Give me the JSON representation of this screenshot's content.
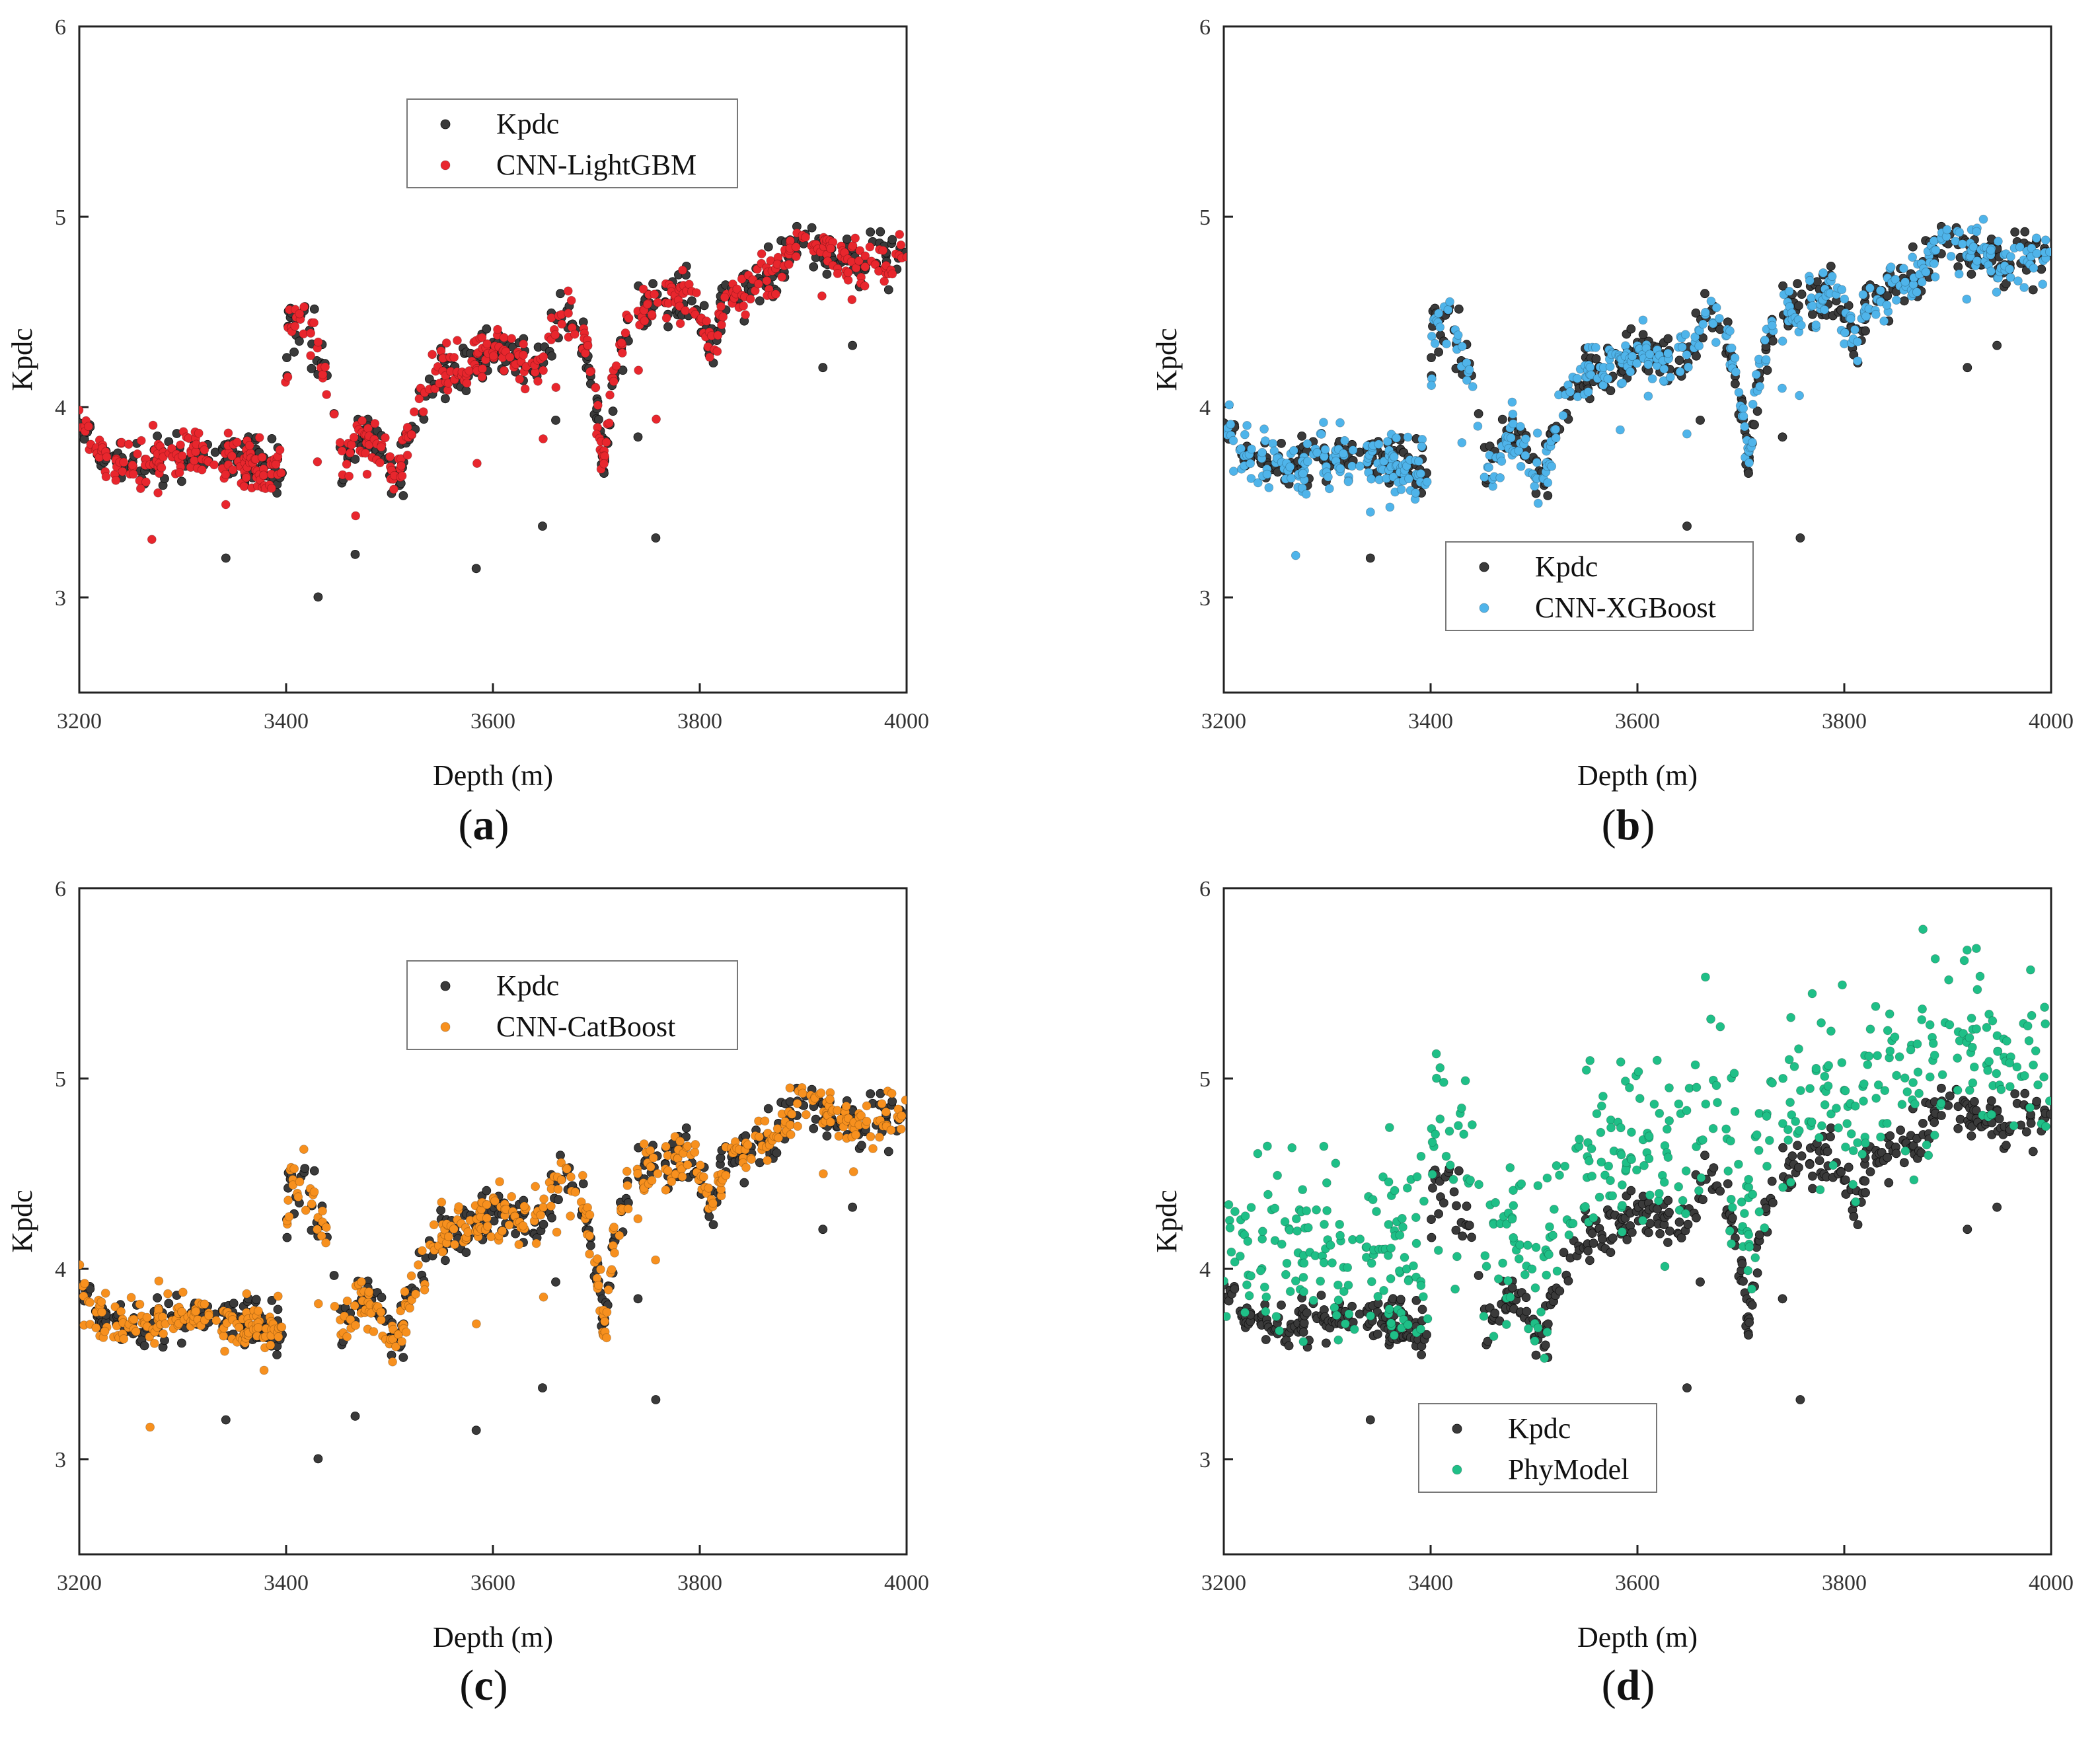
{
  "chart_data": [
    {
      "type": "scatter",
      "panel_label": "a",
      "title": "",
      "xlabel": "Depth (m)",
      "ylabel": "Kpdc",
      "xlim": [
        3200,
        4000
      ],
      "ylim": [
        2.5,
        6
      ],
      "xticks": [
        3200,
        3400,
        3600,
        3800,
        4000
      ],
      "yticks": [
        3,
        4,
        5,
        6
      ],
      "legend_position": "top-center",
      "series": [
        {
          "name": "Kpdc",
          "color": "#3a3a3a",
          "model": "measured"
        },
        {
          "name": "CNN-LightGBM",
          "color": "#e8262d",
          "model": "close",
          "noise": 0.06,
          "bias": 0.0
        }
      ]
    },
    {
      "type": "scatter",
      "panel_label": "b",
      "title": "",
      "xlabel": "Depth (m)",
      "ylabel": "Kpdc",
      "xlim": [
        3200,
        4000
      ],
      "ylim": [
        2.5,
        6
      ],
      "xticks": [
        3200,
        3400,
        3600,
        3800,
        4000
      ],
      "yticks": [
        3,
        4,
        5,
        6
      ],
      "legend_position": "bottom-center",
      "series": [
        {
          "name": "Kpdc",
          "color": "#3a3a3a",
          "model": "measured"
        },
        {
          "name": "CNN-XGBoost",
          "color": "#4fb4ea",
          "model": "close",
          "noise": 0.07,
          "bias": 0.0
        }
      ]
    },
    {
      "type": "scatter",
      "panel_label": "c",
      "title": "",
      "xlabel": "Depth (m)",
      "ylabel": "Kpdc",
      "xlim": [
        3200,
        4000
      ],
      "ylim": [
        2.5,
        6
      ],
      "xticks": [
        3200,
        3400,
        3600,
        3800,
        4000
      ],
      "yticks": [
        3,
        4,
        5,
        6
      ],
      "legend_position": "top-center",
      "series": [
        {
          "name": "Kpdc",
          "color": "#3a3a3a",
          "model": "measured"
        },
        {
          "name": "CNN-CatBoost",
          "color": "#f7901e",
          "model": "close",
          "noise": 0.065,
          "bias": 0.0
        }
      ]
    },
    {
      "type": "scatter",
      "panel_label": "d",
      "title": "",
      "xlabel": "Depth (m)",
      "ylabel": "Kpdc",
      "xlim": [
        3200,
        4000
      ],
      "ylim": [
        2.5,
        6
      ],
      "xticks": [
        3200,
        3400,
        3600,
        3800,
        4000
      ],
      "yticks": [
        3,
        4,
        5,
        6
      ],
      "legend_position": "bottom-left",
      "series": [
        {
          "name": "Kpdc",
          "color": "#3a3a3a",
          "model": "measured"
        },
        {
          "name": "PhyModel",
          "color": "#1fbf87",
          "model": "physical",
          "noise": 0.25,
          "bias": 0.35
        }
      ]
    }
  ],
  "kpdc_profile": {
    "description_free": true,
    "depth": [
      3200,
      3210,
      3230,
      3260,
      3300,
      3350,
      3380,
      3398,
      3402,
      3420,
      3440,
      3455,
      3470,
      3490,
      3505,
      3525,
      3550,
      3575,
      3600,
      3625,
      3650,
      3665,
      3680,
      3695,
      3708,
      3715,
      3730,
      3760,
      3790,
      3800,
      3812,
      3825,
      3850,
      3875,
      3900,
      3930,
      3960,
      4000
    ],
    "kpdc": [
      3.95,
      3.8,
      3.72,
      3.7,
      3.75,
      3.72,
      3.68,
      3.68,
      4.45,
      4.45,
      4.15,
      3.65,
      3.85,
      3.8,
      3.6,
      3.95,
      4.2,
      4.2,
      4.3,
      4.25,
      4.25,
      4.5,
      4.45,
      4.2,
      3.7,
      4.1,
      4.45,
      4.55,
      4.6,
      4.5,
      4.35,
      4.55,
      4.65,
      4.7,
      4.9,
      4.8,
      4.75,
      4.8
    ]
  }
}
